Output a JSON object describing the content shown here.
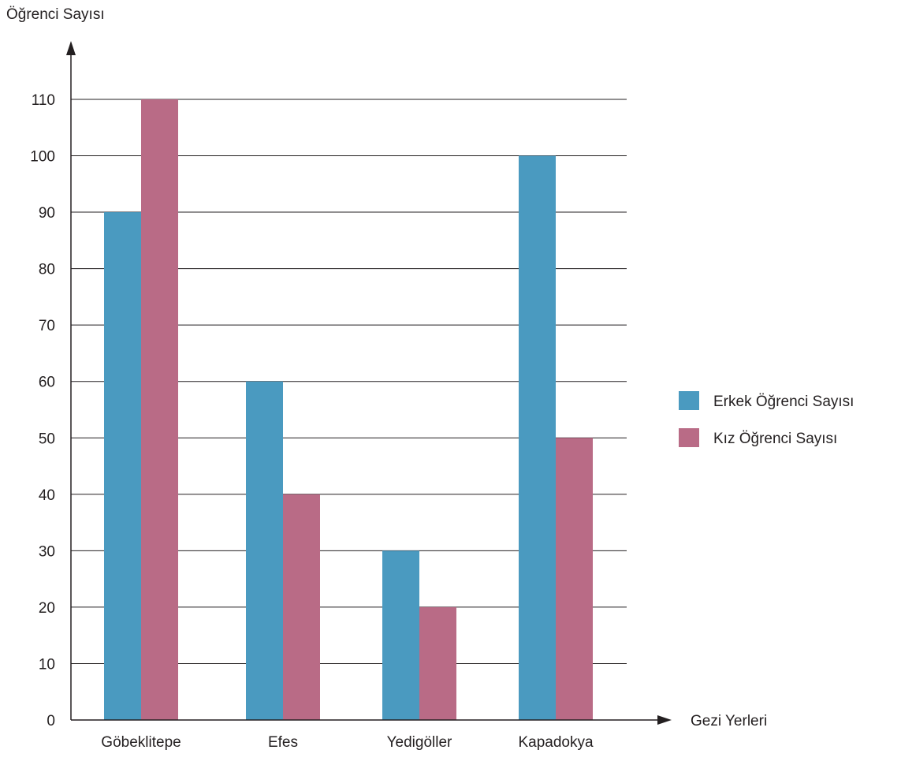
{
  "chart_data": {
    "type": "bar",
    "ylabel": "Öğrenci Sayısı",
    "xlabel": "Gezi Yerleri",
    "categories": [
      "Göbeklitepe",
      "Efes",
      "Yedigöller",
      "Kapadokya"
    ],
    "series": [
      {
        "name": "Erkek Öğrenci Sayısı",
        "color": "#4a9ac0",
        "values": [
          90,
          60,
          30,
          100
        ]
      },
      {
        "name": "Kız Öğrenci Sayısı",
        "color": "#b96b86",
        "values": [
          110,
          40,
          20,
          50
        ]
      }
    ],
    "ylim": [
      0,
      110
    ],
    "yticks": [
      0,
      10,
      20,
      30,
      40,
      50,
      60,
      70,
      80,
      90,
      100,
      110
    ],
    "grid": true,
    "legend": "right"
  }
}
